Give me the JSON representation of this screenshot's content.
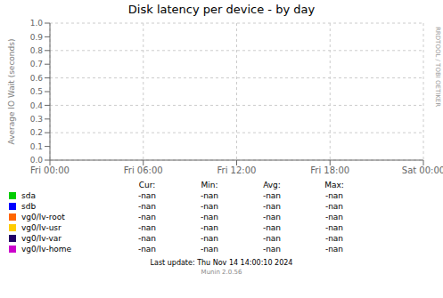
{
  "chart_data": {
    "type": "line",
    "title": "Disk latency per device - by day",
    "ylabel": "Average IO Wait (seconds)",
    "categories": [
      "Fri 00:00",
      "Fri 06:00",
      "Fri 12:00",
      "Fri 18:00",
      "Sat 00:00"
    ],
    "series": [
      {
        "name": "sda",
        "color": "#00cc00",
        "values": [
          null,
          null,
          null,
          null,
          null
        ],
        "legend_values": [
          "-nan",
          "-nan",
          "-nan",
          "-nan"
        ]
      },
      {
        "name": "sdb",
        "color": "#0000ff",
        "values": [
          null,
          null,
          null,
          null,
          null
        ],
        "legend_values": [
          "-nan",
          "-nan",
          "-nan",
          "-nan"
        ]
      },
      {
        "name": "vg0/lv-root",
        "color": "#ff6600",
        "values": [
          null,
          null,
          null,
          null,
          null
        ],
        "legend_values": [
          "-nan",
          "-nan",
          "-nan",
          "-nan"
        ]
      },
      {
        "name": "vg0/lv-usr",
        "color": "#ffcc00",
        "values": [
          null,
          null,
          null,
          null,
          null
        ],
        "legend_values": [
          "-nan",
          "-nan",
          "-nan",
          "-nan"
        ]
      },
      {
        "name": "vg0/lv-var",
        "color": "#220066",
        "values": [
          null,
          null,
          null,
          null,
          null
        ],
        "legend_values": [
          "-nan",
          "-nan",
          "-nan",
          "-nan"
        ]
      },
      {
        "name": "vg0/lv-home",
        "color": "#cc00cc",
        "values": [
          null,
          null,
          null,
          null,
          null
        ],
        "legend_values": [
          "-nan",
          "-nan",
          "-nan",
          "-nan"
        ]
      }
    ],
    "legend_columns": [
      "Cur:",
      "Min:",
      "Avg:",
      "Max:"
    ],
    "ylim": [
      0.0,
      1.0
    ],
    "yticks": [
      {
        "value": 0.0,
        "label": "0.0"
      },
      0.1,
      0.2,
      0.3,
      0.4,
      0.5,
      0.6,
      0.7,
      0.8,
      0.9,
      {
        "value": 1.0,
        "label": "1.0"
      }
    ],
    "grid": true,
    "legend": "bottom",
    "annotations": [
      "RRDTOOL / TOBI OETIKER",
      "Last update: Thu Nov 14 14:00:10 2024",
      "Munin 2.0.56"
    ]
  }
}
